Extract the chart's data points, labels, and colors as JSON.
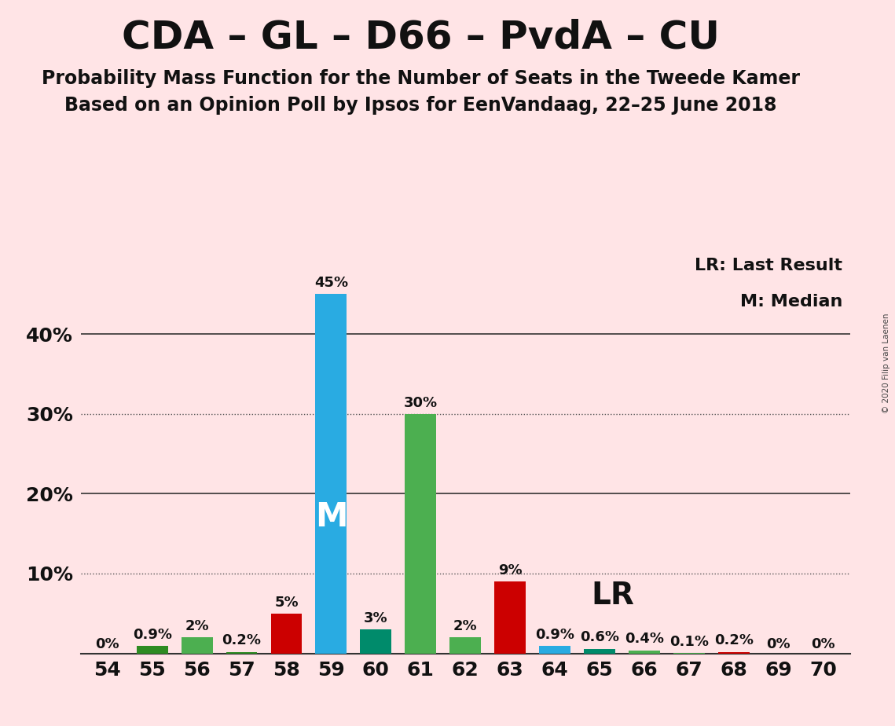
{
  "title": "CDA – GL – D66 – PvdA – CU",
  "subtitle1": "Probability Mass Function for the Number of Seats in the Tweede Kamer",
  "subtitle2": "Based on an Opinion Poll by Ipsos for EenVandaag, 22–25 June 2018",
  "copyright": "© 2020 Filip van Laenen",
  "legend1": "LR: Last Result",
  "legend2": "M: Median",
  "seats": [
    54,
    55,
    56,
    57,
    58,
    59,
    60,
    61,
    62,
    63,
    64,
    65,
    66,
    67,
    68,
    69,
    70
  ],
  "values": [
    0.0,
    0.9,
    2.0,
    0.2,
    5.0,
    45.0,
    3.0,
    30.0,
    2.0,
    9.0,
    0.9,
    0.6,
    0.4,
    0.1,
    0.2,
    0.0,
    0.0
  ],
  "labels": [
    "0%",
    "0.9%",
    "2%",
    "0.2%",
    "5%",
    "45%",
    "3%",
    "30%",
    "2%",
    "9%",
    "0.9%",
    "0.6%",
    "0.4%",
    "0.1%",
    "0.2%",
    "0%",
    "0%"
  ],
  "bar_colors": [
    "#2E8B22",
    "#2E8B22",
    "#4CAF50",
    "#2E8B22",
    "#CC0000",
    "#29ABE2",
    "#008B6B",
    "#4CAF50",
    "#4CAF50",
    "#CC0000",
    "#29ABE2",
    "#008B6B",
    "#4CAF50",
    "#4CAF50",
    "#CC0000",
    "#CC0000",
    "#4CAF50"
  ],
  "median_seat": 59,
  "lr_seat": 63,
  "background_color": "#FFE4E6",
  "ylim": 50,
  "solid_gridlines": [
    20,
    40
  ],
  "dotted_gridlines": [
    10,
    30
  ],
  "ytick_positions": [
    10,
    20,
    30,
    40
  ],
  "ytick_labels": [
    "10%",
    "20%",
    "30%",
    "40%"
  ],
  "title_fontsize": 36,
  "subtitle_fontsize": 17,
  "tick_fontsize": 18,
  "label_fontsize": 13,
  "legend_fontsize": 16,
  "m_fontsize": 30,
  "lr_fontsize": 28
}
